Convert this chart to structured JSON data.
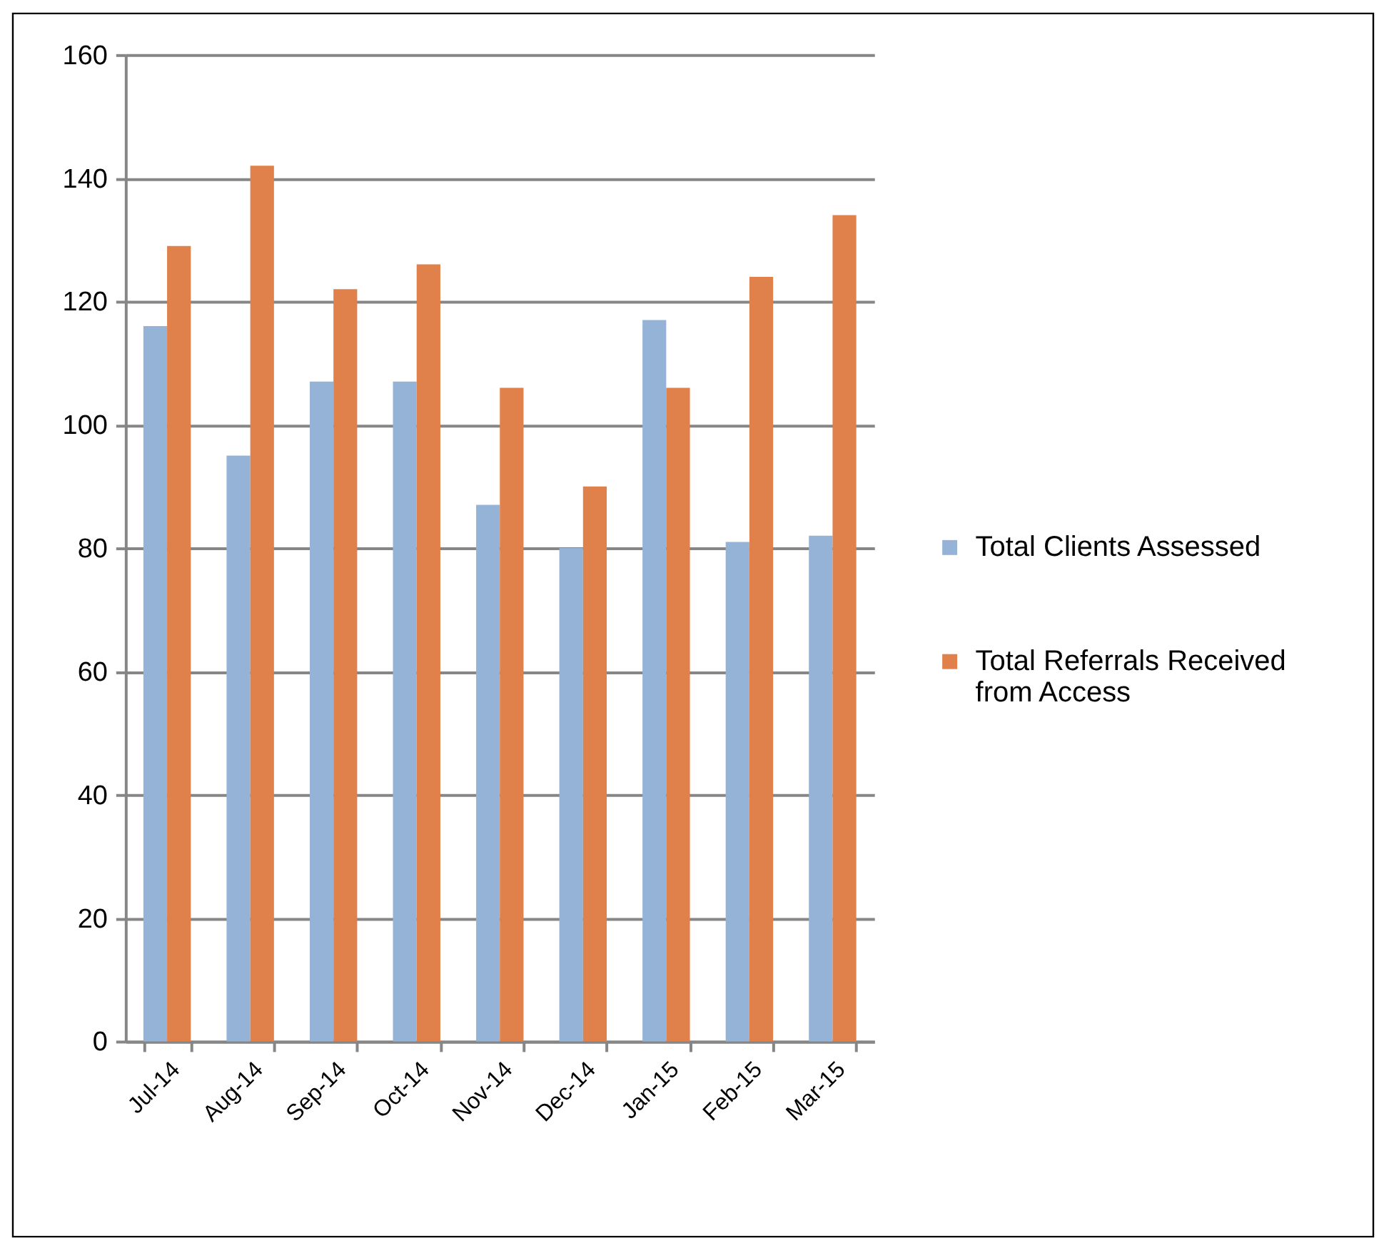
{
  "chart_data": {
    "type": "bar",
    "categories": [
      "Jul-14",
      "Aug-14",
      "Sep-14",
      "Oct-14",
      "Nov-14",
      "Dec-14",
      "Jan-15",
      "Feb-15",
      "Mar-15"
    ],
    "series": [
      {
        "name": "Total Clients Assessed",
        "color": "#95b3d7",
        "values": [
          116,
          95,
          107,
          107,
          87,
          80,
          117,
          81,
          82
        ]
      },
      {
        "name": "Total Referrals Received from Access",
        "color": "#e0804a",
        "values": [
          129,
          142,
          122,
          126,
          106,
          90,
          106,
          124,
          134
        ]
      }
    ],
    "ylim": [
      0,
      160
    ],
    "yticks": [
      0,
      20,
      40,
      60,
      80,
      100,
      120,
      140,
      160
    ],
    "grid": "y",
    "legend": "right"
  }
}
